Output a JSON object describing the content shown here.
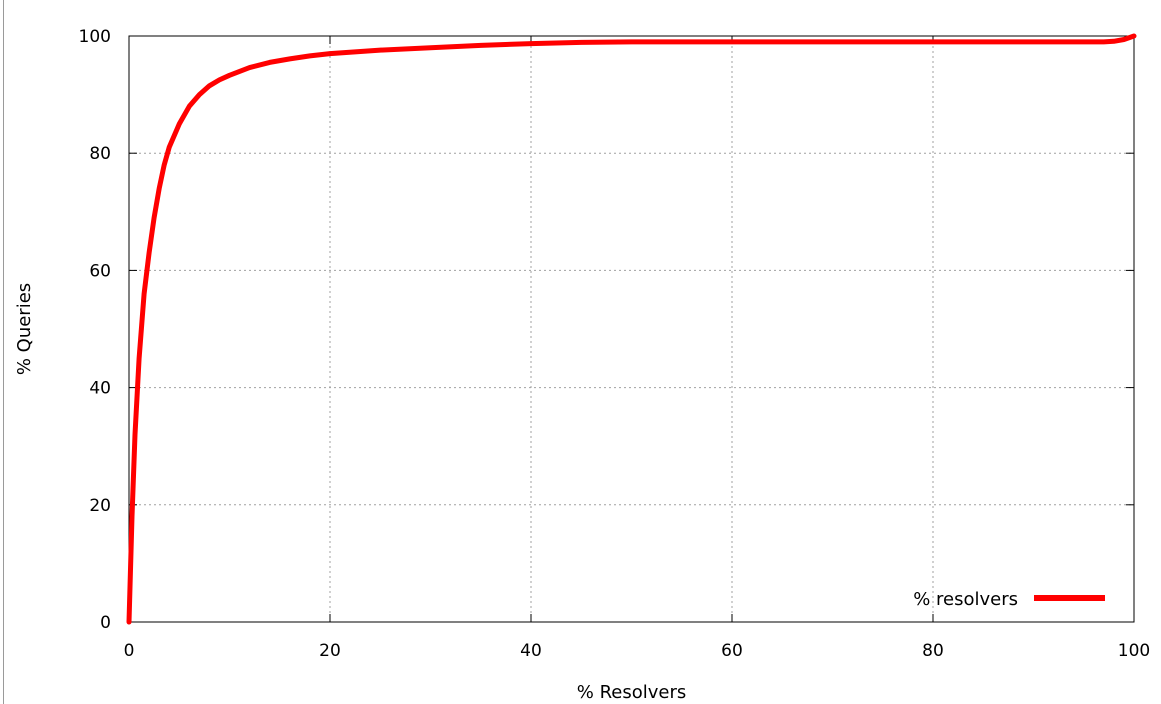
{
  "chart_data": {
    "type": "line",
    "xlabel": "% Resolvers",
    "ylabel": "% Queries",
    "xlim": [
      0,
      100
    ],
    "ylim": [
      0,
      100
    ],
    "xticks": [
      0,
      20,
      40,
      60,
      80,
      100
    ],
    "yticks": [
      0,
      20,
      40,
      60,
      80,
      100
    ],
    "grid": true,
    "legend_position": "bottom-right",
    "series": [
      {
        "name": "% resolvers",
        "color": "#ff0000",
        "x": [
          0,
          0.3,
          0.6,
          1,
          1.5,
          2,
          2.5,
          3,
          3.5,
          4,
          5,
          6,
          7,
          8,
          9,
          10,
          12,
          14,
          16,
          18,
          20,
          25,
          30,
          35,
          40,
          45,
          50,
          60,
          70,
          80,
          90,
          95,
          97,
          98,
          99,
          100
        ],
        "y": [
          0,
          18,
          32,
          45,
          56,
          63,
          69,
          74,
          78,
          81,
          85,
          88,
          90,
          91.5,
          92.5,
          93.3,
          94.6,
          95.5,
          96.1,
          96.6,
          97,
          97.6,
          98,
          98.4,
          98.7,
          98.9,
          99,
          99,
          99,
          99,
          99,
          99,
          99,
          99.1,
          99.4,
          100
        ]
      }
    ]
  }
}
